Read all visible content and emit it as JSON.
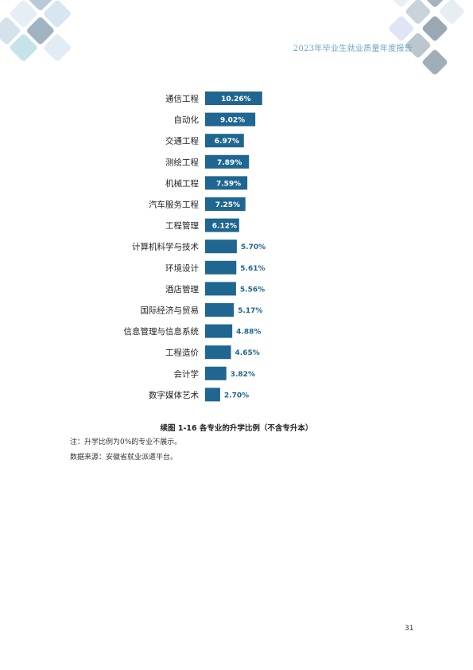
{
  "header": {
    "title": "2023年毕业生就业质量年度报告"
  },
  "chart_data": {
    "type": "bar",
    "orientation": "horizontal",
    "categories": [
      "通信工程",
      "自动化",
      "交通工程",
      "测绘工程",
      "机械工程",
      "汽车服务工程",
      "工程管理",
      "计算机科学与技术",
      "环境设计",
      "酒店管理",
      "国际经济与贸易",
      "信息管理与信息系统",
      "工程造价",
      "会计学",
      "数字媒体艺术"
    ],
    "values": [
      10.26,
      9.02,
      6.97,
      7.89,
      7.59,
      7.25,
      6.12,
      5.7,
      5.61,
      5.56,
      5.17,
      4.88,
      4.65,
      3.82,
      2.7
    ],
    "value_labels": [
      "10.26%",
      "9.02%",
      "6.97%",
      "7.89%",
      "7.59%",
      "7.25%",
      "6.12%",
      "5.70%",
      "5.61%",
      "5.56%",
      "5.17%",
      "4.88%",
      "4.65%",
      "3.82%",
      "2.70%"
    ],
    "unit": "%",
    "bar_color": "#1f6690",
    "grid": false,
    "legend": "none"
  },
  "caption": "续图 1-16 各专业的升学比例（不含专升本）",
  "notes": [
    "注：升学比例为0%的专业不展示。",
    "数据来源：安徽省就业派遣平台。"
  ],
  "page_number": "31"
}
